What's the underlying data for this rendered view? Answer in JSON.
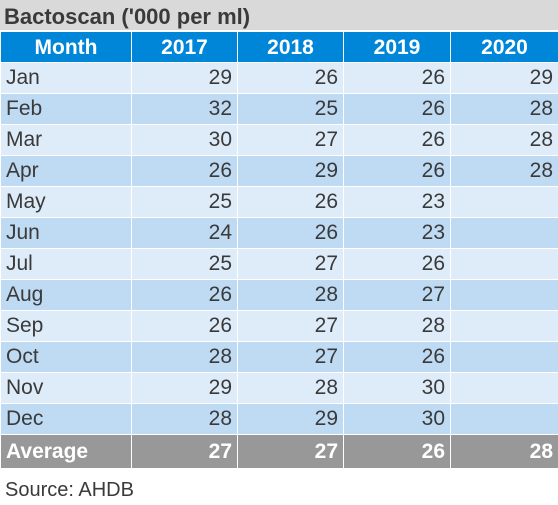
{
  "title": "Bactoscan ('000 per ml)",
  "columns": [
    "Month",
    "2017",
    "2018",
    "2019",
    "2020"
  ],
  "rows": [
    [
      "Jan",
      "29",
      "26",
      "26",
      "29"
    ],
    [
      "Feb",
      "32",
      "25",
      "26",
      "28"
    ],
    [
      "Mar",
      "30",
      "27",
      "26",
      "28"
    ],
    [
      "Apr",
      "26",
      "29",
      "26",
      "28"
    ],
    [
      "May",
      "25",
      "26",
      "23",
      ""
    ],
    [
      "Jun",
      "24",
      "26",
      "23",
      ""
    ],
    [
      "Jul",
      "25",
      "27",
      "26",
      ""
    ],
    [
      "Aug",
      "26",
      "28",
      "27",
      ""
    ],
    [
      "Sep",
      "26",
      "27",
      "28",
      ""
    ],
    [
      "Oct",
      "28",
      "27",
      "26",
      ""
    ],
    [
      "Nov",
      "29",
      "28",
      "30",
      ""
    ],
    [
      "Dec",
      "28",
      "29",
      "30",
      ""
    ]
  ],
  "average": [
    "Average",
    "27",
    "27",
    "26",
    "28"
  ],
  "source": "Source: AHDB",
  "colors": {
    "header": "#0086d9",
    "row_light": "#deecf9",
    "row_dark": "#bfdaf3",
    "average": "#989898",
    "title_bg": "#d9d9d9"
  }
}
